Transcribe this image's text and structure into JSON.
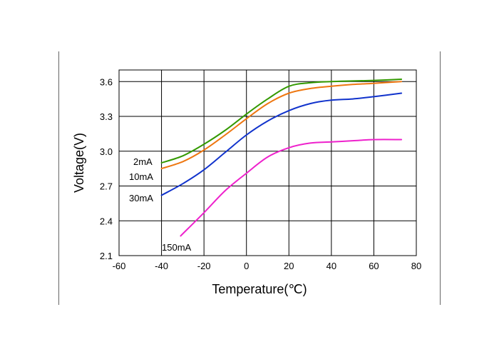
{
  "chart_data": {
    "type": "line",
    "title": "",
    "xlabel": "Temperature(℃)",
    "ylabel": "Voltage(V)",
    "xlim": [
      -60,
      80
    ],
    "ylim": [
      2.1,
      3.7
    ],
    "x_ticks": [
      -60,
      -40,
      -20,
      0,
      20,
      40,
      60,
      80
    ],
    "x_tick_labels": [
      "-60",
      "-40",
      "-20",
      "0",
      "20",
      "40",
      "60",
      "80"
    ],
    "y_ticks": [
      2.1,
      2.4,
      2.7,
      3.0,
      3.3,
      3.6
    ],
    "y_tick_labels": [
      "2.1",
      "2.4",
      "2.7",
      "3.0",
      "3.3",
      "3.6"
    ],
    "grid": true,
    "legend": "inline labels at left end of each curve",
    "series": [
      {
        "name": "2mA",
        "color": "#339900",
        "x": [
          -40,
          -30,
          -20,
          -10,
          0,
          10,
          20,
          30,
          40,
          50,
          60,
          73
        ],
        "y": [
          2.9,
          2.96,
          3.06,
          3.18,
          3.32,
          3.45,
          3.56,
          3.59,
          3.6,
          3.605,
          3.61,
          3.62
        ]
      },
      {
        "name": "10mA",
        "color": "#ee7711",
        "x": [
          -40,
          -30,
          -20,
          -10,
          0,
          10,
          20,
          30,
          40,
          50,
          60,
          73
        ],
        "y": [
          2.85,
          2.91,
          3.01,
          3.14,
          3.28,
          3.41,
          3.5,
          3.54,
          3.56,
          3.575,
          3.585,
          3.6
        ]
      },
      {
        "name": "30mA",
        "color": "#1133cc",
        "x": [
          -40,
          -30,
          -20,
          -10,
          0,
          10,
          20,
          30,
          40,
          50,
          60,
          73
        ],
        "y": [
          2.62,
          2.72,
          2.84,
          2.99,
          3.14,
          3.26,
          3.35,
          3.41,
          3.44,
          3.45,
          3.47,
          3.5
        ]
      },
      {
        "name": "150mA",
        "color": "#ee22cc",
        "x": [
          -31,
          -20,
          -10,
          0,
          10,
          20,
          30,
          40,
          50,
          60,
          73
        ],
        "y": [
          2.27,
          2.47,
          2.66,
          2.81,
          2.95,
          3.03,
          3.07,
          3.08,
          3.09,
          3.1,
          3.1
        ]
      }
    ]
  }
}
